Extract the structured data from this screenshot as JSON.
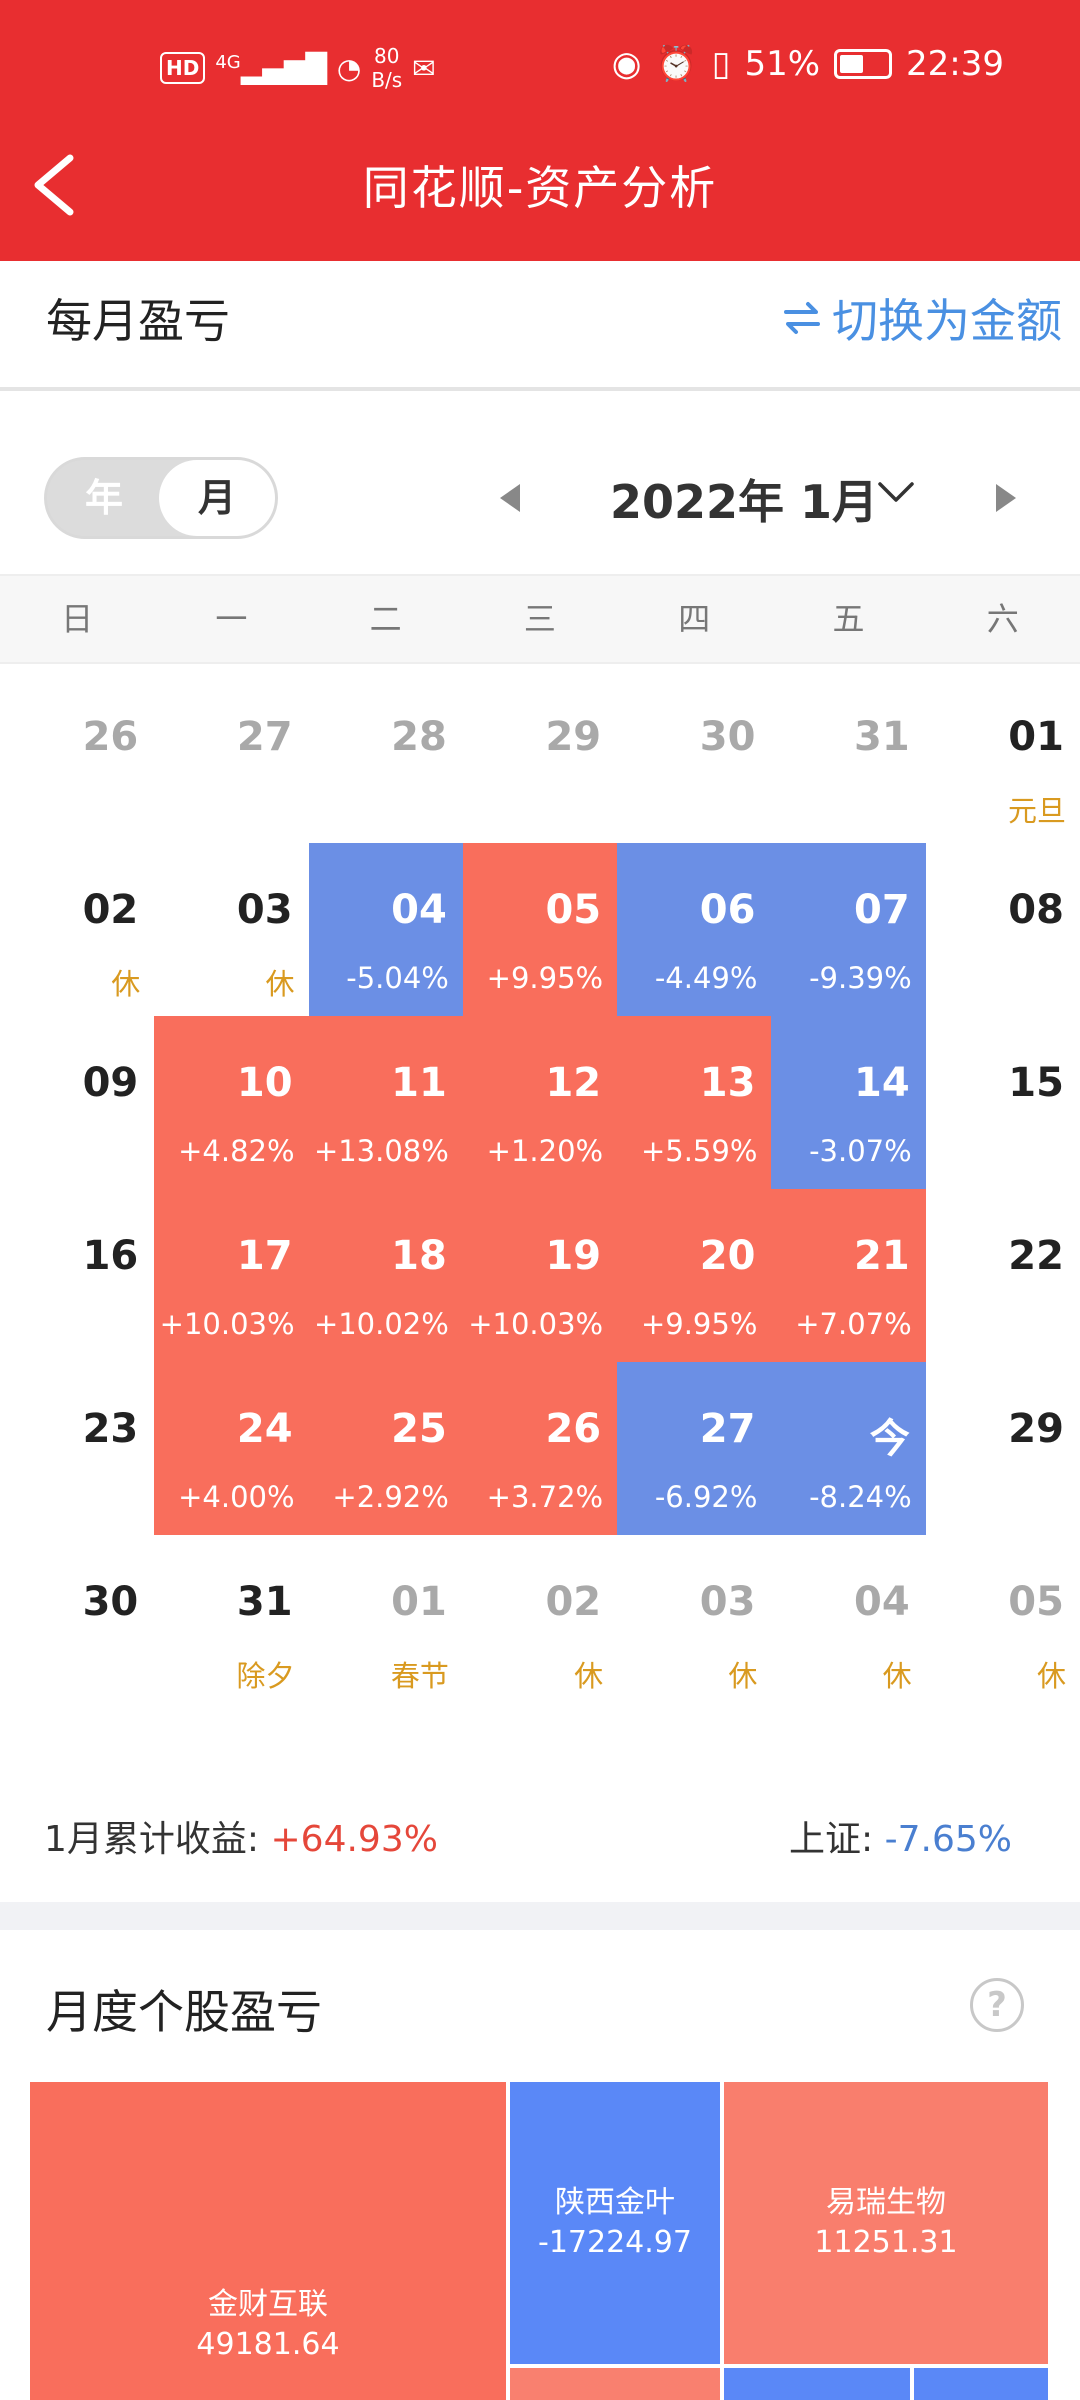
{
  "status_bar": {
    "hd": "HD",
    "network": "4G",
    "speed_value": "80",
    "speed_unit": "B/s",
    "battery_pct": "51%",
    "battery_level": 0.51,
    "time": "22:39"
  },
  "header": {
    "title": "同花顺-资产分析"
  },
  "section": {
    "title": "每月盈亏",
    "switch_label": "切换为金额"
  },
  "toggle": {
    "year": "年",
    "month": "月"
  },
  "month_nav": {
    "label": "2022年 1月"
  },
  "weekdays": [
    "日",
    "一",
    "二",
    "三",
    "四",
    "五",
    "六"
  ],
  "calendar": {
    "rows": [
      [
        {
          "day": "26",
          "sub": "",
          "state": "dim"
        },
        {
          "day": "27",
          "sub": "",
          "state": "dim"
        },
        {
          "day": "28",
          "sub": "",
          "state": "dim"
        },
        {
          "day": "29",
          "sub": "",
          "state": "dim"
        },
        {
          "day": "30",
          "sub": "",
          "state": "dim"
        },
        {
          "day": "31",
          "sub": "",
          "state": "dim"
        },
        {
          "day": "01",
          "sub": "元旦",
          "state": "normal"
        }
      ],
      [
        {
          "day": "02",
          "sub": "休",
          "state": "normal"
        },
        {
          "day": "03",
          "sub": "休",
          "state": "normal"
        },
        {
          "day": "04",
          "sub": "-5.04%",
          "state": "loss"
        },
        {
          "day": "05",
          "sub": "+9.95%",
          "state": "gain"
        },
        {
          "day": "06",
          "sub": "-4.49%",
          "state": "loss"
        },
        {
          "day": "07",
          "sub": "-9.39%",
          "state": "loss"
        },
        {
          "day": "08",
          "sub": "",
          "state": "normal"
        }
      ],
      [
        {
          "day": "09",
          "sub": "",
          "state": "normal"
        },
        {
          "day": "10",
          "sub": "+4.82%",
          "state": "gain"
        },
        {
          "day": "11",
          "sub": "+13.08%",
          "state": "gain"
        },
        {
          "day": "12",
          "sub": "+1.20%",
          "state": "gain"
        },
        {
          "day": "13",
          "sub": "+5.59%",
          "state": "gain"
        },
        {
          "day": "14",
          "sub": "-3.07%",
          "state": "loss"
        },
        {
          "day": "15",
          "sub": "",
          "state": "normal"
        }
      ],
      [
        {
          "day": "16",
          "sub": "",
          "state": "normal"
        },
        {
          "day": "17",
          "sub": "+10.03%",
          "state": "gain"
        },
        {
          "day": "18",
          "sub": "+10.02%",
          "state": "gain"
        },
        {
          "day": "19",
          "sub": "+10.03%",
          "state": "gain"
        },
        {
          "day": "20",
          "sub": "+9.95%",
          "state": "gain"
        },
        {
          "day": "21",
          "sub": "+7.07%",
          "state": "gain"
        },
        {
          "day": "22",
          "sub": "",
          "state": "normal"
        }
      ],
      [
        {
          "day": "23",
          "sub": "",
          "state": "normal"
        },
        {
          "day": "24",
          "sub": "+4.00%",
          "state": "gain"
        },
        {
          "day": "25",
          "sub": "+2.92%",
          "state": "gain"
        },
        {
          "day": "26",
          "sub": "+3.72%",
          "state": "gain"
        },
        {
          "day": "27",
          "sub": "-6.92%",
          "state": "loss"
        },
        {
          "day": "今",
          "sub": "-8.24%",
          "state": "loss"
        },
        {
          "day": "29",
          "sub": "",
          "state": "normal"
        }
      ],
      [
        {
          "day": "30",
          "sub": "",
          "state": "normal"
        },
        {
          "day": "31",
          "sub": "除夕",
          "state": "normal"
        },
        {
          "day": "01",
          "sub": "春节",
          "state": "dim"
        },
        {
          "day": "02",
          "sub": "休",
          "state": "dim"
        },
        {
          "day": "03",
          "sub": "休",
          "state": "dim"
        },
        {
          "day": "04",
          "sub": "休",
          "state": "dim"
        },
        {
          "day": "05",
          "sub": "休",
          "state": "dim"
        }
      ]
    ]
  },
  "summary": {
    "month_label": "1月累计收益:",
    "month_value": "+64.93%",
    "index_label": "上证:",
    "index_value": "-7.65%"
  },
  "stock_section": {
    "title": "月度个股盈亏",
    "help": "?"
  },
  "treemap": [
    {
      "name": "金财互联",
      "value": "49181.64",
      "color": "#f96e5c"
    },
    {
      "name": "陕西金叶",
      "value": "-17224.97",
      "color": "#5a88f7"
    },
    {
      "name": "易瑞生物",
      "value": "11251.31",
      "color": "#f97e6d"
    },
    {
      "name": "",
      "value": "",
      "color": "#f9806f"
    },
    {
      "name": "",
      "value": "",
      "color": "#5a88f7"
    },
    {
      "name": "",
      "value": "",
      "color": "#5a88f7"
    }
  ],
  "colors": {
    "header": "#e82e30",
    "gain": "#f96e5c",
    "loss": "#6b8fe5",
    "accent_blue": "#4a90e2"
  }
}
